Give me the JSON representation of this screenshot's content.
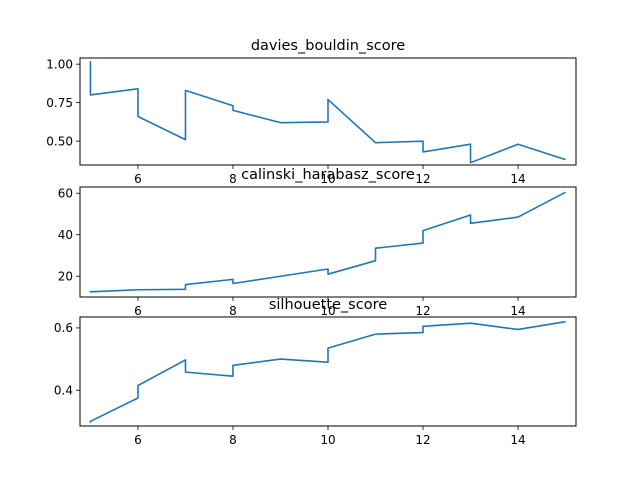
{
  "chart_data": [
    {
      "type": "line",
      "title": "davies_bouldin_score",
      "xlabel": "",
      "ylabel": "",
      "xlim": [
        4.78,
        15.22
      ],
      "ylim": [
        0.345,
        1.04
      ],
      "xticks": [
        6,
        8,
        10,
        12,
        14
      ],
      "xtick_labels": [
        "6",
        "8",
        "10",
        "12",
        "14"
      ],
      "yticks": [
        0.5,
        0.75,
        1.0
      ],
      "ytick_labels": [
        "0.50",
        "0.75",
        "1.00"
      ],
      "grid": false,
      "color": "#1f77b4",
      "series": [
        {
          "x": [
            5,
            5,
            6,
            6,
            7,
            7,
            8,
            8,
            9,
            10,
            10,
            11,
            12,
            12,
            13,
            13,
            14,
            15
          ],
          "y": [
            1.02,
            0.8,
            0.84,
            0.66,
            0.51,
            0.83,
            0.73,
            0.7,
            0.62,
            0.625,
            0.77,
            0.49,
            0.5,
            0.43,
            0.48,
            0.36,
            0.48,
            0.38
          ]
        }
      ]
    },
    {
      "type": "line",
      "title": "calinski_harabasz_score",
      "xlabel": "",
      "ylabel": "",
      "xlim": [
        4.78,
        15.22
      ],
      "ylim": [
        10.0,
        63.0
      ],
      "xticks": [
        6,
        8,
        10,
        12,
        14
      ],
      "xtick_labels": [
        "6",
        "8",
        "10",
        "12",
        "14"
      ],
      "yticks": [
        20,
        40,
        60
      ],
      "ytick_labels": [
        "20",
        "40",
        "60"
      ],
      "grid": false,
      "color": "#1f77b4",
      "series": [
        {
          "x": [
            5,
            5,
            6,
            7,
            7,
            8,
            8,
            9,
            10,
            10,
            11,
            11,
            12,
            12,
            13,
            13,
            14,
            15
          ],
          "y": [
            13.0,
            12.5,
            13.5,
            13.7,
            16.0,
            18.5,
            16.5,
            20.0,
            23.5,
            21.0,
            27.5,
            33.5,
            36.0,
            42.0,
            49.5,
            45.5,
            48.5,
            60.5
          ]
        }
      ]
    },
    {
      "type": "line",
      "title": "silhouette_score",
      "xlabel": "",
      "ylabel": "",
      "xlim": [
        4.78,
        15.22
      ],
      "ylim": [
        0.285,
        0.635
      ],
      "xticks": [
        6,
        8,
        10,
        12,
        14
      ],
      "xtick_labels": [
        "6",
        "8",
        "10",
        "12",
        "14"
      ],
      "yticks": [
        0.4,
        0.6
      ],
      "ytick_labels": [
        "0.4",
        "0.6"
      ],
      "grid": false,
      "color": "#1f77b4",
      "series": [
        {
          "x": [
            5,
            5,
            6,
            6,
            7,
            7,
            8,
            8,
            9,
            10,
            10,
            11,
            12,
            12,
            13,
            14,
            15
          ],
          "y": [
            0.295,
            0.3,
            0.375,
            0.415,
            0.497,
            0.458,
            0.445,
            0.48,
            0.5,
            0.49,
            0.535,
            0.58,
            0.585,
            0.605,
            0.615,
            0.595,
            0.62
          ]
        }
      ]
    }
  ]
}
